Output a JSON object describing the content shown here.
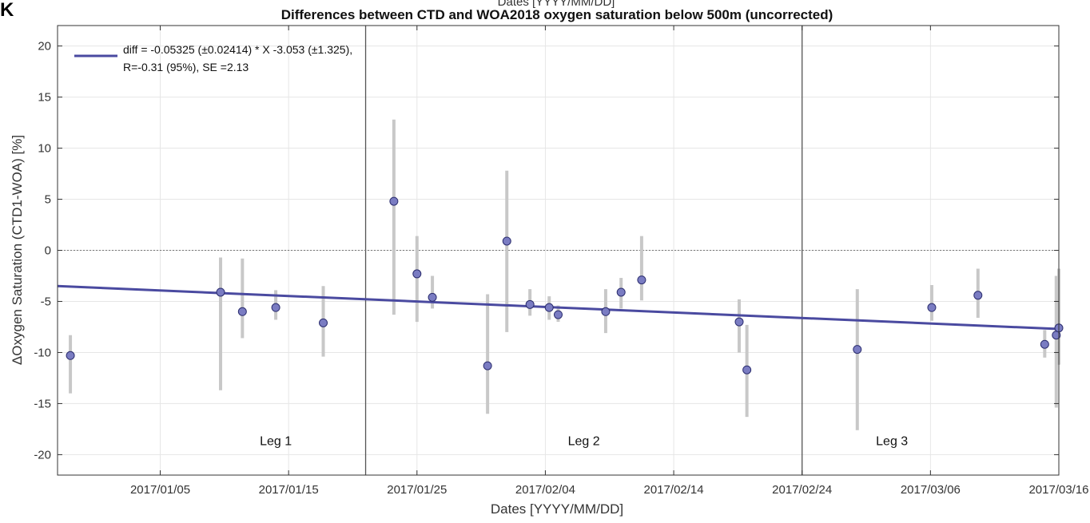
{
  "panel_letter": "K",
  "chart_data": {
    "type": "scatter",
    "title": "Differences between CTD and WOA2018 oxygen saturation below 500m (uncorrected)",
    "top_label_fragment": "Dates [YYYY/MM/DD]",
    "xlabel": "Dates [YYYY/MM/DD]",
    "ylabel": "ΔOxygen Saturation (CTD1-WOA) [%]",
    "xlim": [
      "2016-12-28",
      "2017-03-16"
    ],
    "ylim": [
      -22,
      22
    ],
    "y_ticks": [
      20,
      15,
      10,
      5,
      0,
      -5,
      -10,
      -15,
      -20
    ],
    "x_ticks": [
      "2017/01/05",
      "2017/01/15",
      "2017/01/25",
      "2017/02/04",
      "2017/02/14",
      "2017/02/24",
      "2017/03/06",
      "2017/03/16"
    ],
    "grid": true,
    "zero_line": 0,
    "colors": {
      "marker_fill": "#7a7cc2",
      "marker_edge": "#2b2d6e",
      "fit_line": "#4a4aa0",
      "range_bars": "#c8c8c8",
      "divider": "#555555"
    },
    "legend": {
      "position": "top-left",
      "line1": "diff = -0.05325 (±0.02414) * X  -3.053 (±1.325),",
      "line2": "R=-0.31 (95%), SE =2.13"
    },
    "fit_line": {
      "x": [
        "2016-12-28",
        "2017-03-16"
      ],
      "y": [
        -3.5,
        -7.7
      ]
    },
    "legs": [
      {
        "label": "Leg 1",
        "x": "2017-01-14",
        "y": -18.6
      },
      {
        "label": "Leg 2",
        "x": "2017-02-07",
        "y": -18.6
      },
      {
        "label": "Leg 3",
        "x": "2017-03-03",
        "y": -18.6
      }
    ],
    "leg_dividers": [
      "2017-01-21",
      "2017-02-24"
    ],
    "series": [
      {
        "name": "stations",
        "points": [
          {
            "x": "2016-12-29",
            "y": -10.3,
            "min": -14.0,
            "max": -8.3
          },
          {
            "x": "2017-01-09.7",
            "y": -4.1,
            "min": -13.7,
            "max": -0.7
          },
          {
            "x": "2017-01-11.4",
            "y": -6.0,
            "min": -8.6,
            "max": -0.8
          },
          {
            "x": "2017-01-14",
            "y": -5.6,
            "min": -6.8,
            "max": -3.9
          },
          {
            "x": "2017-01-17.7",
            "y": -7.1,
            "min": -10.4,
            "max": -3.5
          },
          {
            "x": "2017-01-23.2",
            "y": 4.8,
            "min": -6.3,
            "max": 12.8
          },
          {
            "x": "2017-01-25",
            "y": -2.3,
            "min": -7.0,
            "max": 1.4
          },
          {
            "x": "2017-01-26.2",
            "y": -4.6,
            "min": -5.7,
            "max": -2.5
          },
          {
            "x": "2017-01-30.5",
            "y": -11.3,
            "min": -16.0,
            "max": -4.3
          },
          {
            "x": "2017-02-01",
            "y": 0.9,
            "min": -8.0,
            "max": 7.8
          },
          {
            "x": "2017-02-02.8",
            "y": -5.3,
            "min": -6.4,
            "max": -3.8
          },
          {
            "x": "2017-02-04.3",
            "y": -5.6,
            "min": -6.8,
            "max": -4.5
          },
          {
            "x": "2017-02-05",
            "y": -6.3,
            "min": -7.0,
            "max": -5.4
          },
          {
            "x": "2017-02-08.7",
            "y": -6.0,
            "min": -8.1,
            "max": -3.8
          },
          {
            "x": "2017-02-09.9",
            "y": -4.1,
            "min": -5.7,
            "max": -2.7
          },
          {
            "x": "2017-02-11.5",
            "y": -2.9,
            "min": -4.9,
            "max": 1.4
          },
          {
            "x": "2017-02-19.1",
            "y": -7.0,
            "min": -10.0,
            "max": -4.8
          },
          {
            "x": "2017-02-19.7",
            "y": -11.7,
            "min": -16.3,
            "max": -7.3
          },
          {
            "x": "2017-02-28.3",
            "y": -9.7,
            "min": -17.6,
            "max": -3.8
          },
          {
            "x": "2017-03-06.1",
            "y": -5.6,
            "min": -6.9,
            "max": -3.4
          },
          {
            "x": "2017-03-09.7",
            "y": -4.4,
            "min": -6.6,
            "max": -1.8
          },
          {
            "x": "2017-03-14.9",
            "y": -9.2,
            "min": -10.5,
            "max": -7.8
          },
          {
            "x": "2017-03-15.8",
            "y": -8.3,
            "min": -15.4,
            "max": -2.5
          },
          {
            "x": "2017-03-16",
            "y": -7.6,
            "min": -11.2,
            "max": -1.8
          }
        ]
      }
    ]
  }
}
